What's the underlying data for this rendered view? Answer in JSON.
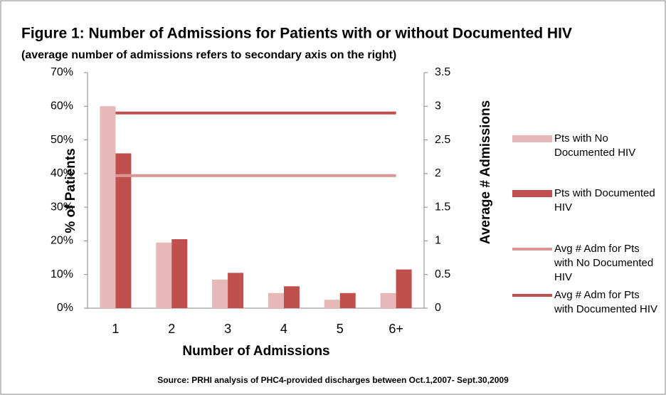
{
  "chart_data": {
    "type": "bar",
    "title": "Figure 1: Number of Admissions for Patients with or without Documented HIV",
    "subtitle": "(average number of admissions refers to secondary axis on the right)",
    "x_label": "Number of Admissions",
    "y_label": "% of Patients",
    "y2_label": "Average # Admissions",
    "source": "Source: PRHI analysis of PHC4-provided discharges between Oct.1,2007- Sept.30,2009",
    "categories": [
      "1",
      "2",
      "3",
      "4",
      "5",
      "6+"
    ],
    "series": [
      {
        "name": "Pts with No Documented HIV",
        "color": "#e6b9b8",
        "type": "bar",
        "values": [
          60,
          19.5,
          8.5,
          4.5,
          2.5,
          4.5
        ]
      },
      {
        "name": "Pts with Documented HIV",
        "color": "#c0504d",
        "type": "bar",
        "values": [
          46,
          20.5,
          10.5,
          6.5,
          4.5,
          11.5
        ]
      },
      {
        "name": "Avg # Adm for Pts with No Documented HIV",
        "color": "#da9694",
        "type": "line",
        "axis": "y2",
        "values": [
          1.97,
          1.97,
          1.97,
          1.97,
          1.97,
          1.97
        ]
      },
      {
        "name": "Avg # Adm for Pts with Documented HIV",
        "color": "#c0504d",
        "type": "line",
        "axis": "y2",
        "values": [
          2.9,
          2.9,
          2.9,
          2.9,
          2.9,
          2.9
        ]
      }
    ],
    "ylim": [
      0,
      70
    ],
    "yticks": [
      {
        "value": 0,
        "label": "0%"
      },
      {
        "value": 10,
        "label": "10%"
      },
      {
        "value": 20,
        "label": "20%"
      },
      {
        "value": 30,
        "label": "30%"
      },
      {
        "value": 40,
        "label": "40%"
      },
      {
        "value": 50,
        "label": "50%"
      },
      {
        "value": 60,
        "label": "60%"
      },
      {
        "value": 70,
        "label": "70%"
      }
    ],
    "y2lim": [
      0,
      3.5
    ],
    "y2ticks": [
      0,
      0.5,
      1,
      1.5,
      2,
      2.5,
      3,
      3.5
    ],
    "grid": false,
    "legend": "right"
  }
}
